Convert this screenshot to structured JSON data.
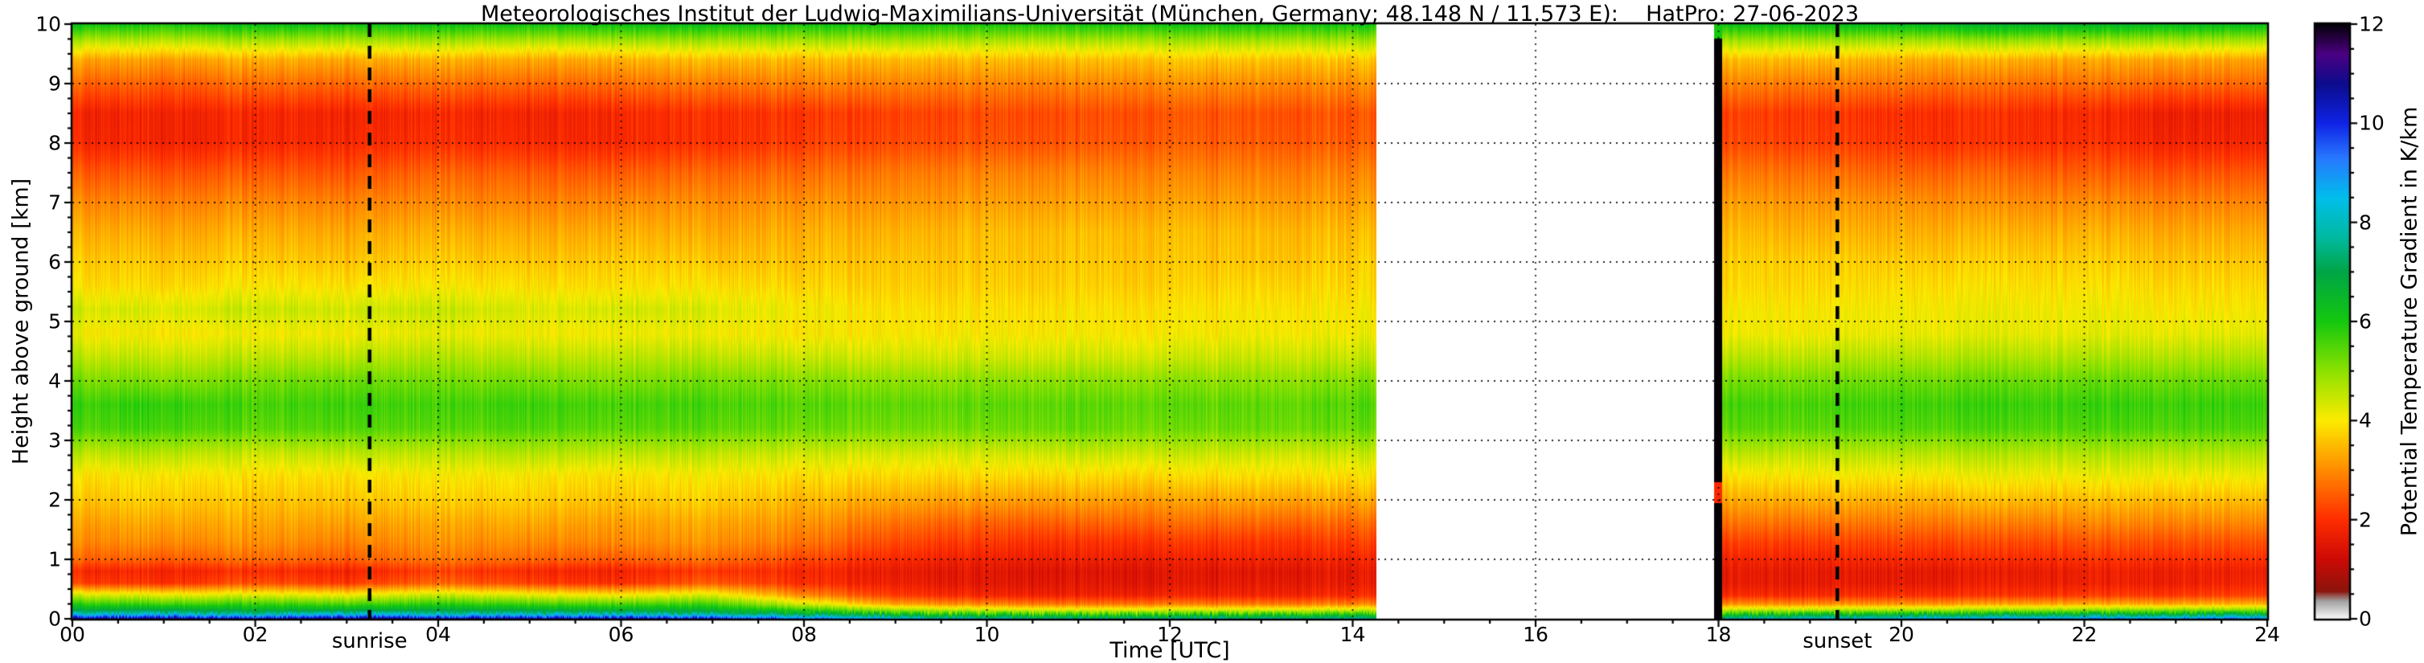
{
  "chart_data": {
    "type": "heatmap",
    "title": "Meteorologisches Institut der Ludwig-Maximilians-Universität (München, Germany; 48.148 N / 11.573 E):    HatPro: 27-06-2023",
    "xlabel": "Time [UTC]",
    "ylabel": "Height above ground [km]",
    "colorbar_label": "Potential Temperature Gradient in K/km",
    "x_range": [
      0,
      24
    ],
    "y_range": [
      0,
      10
    ],
    "value_range": [
      0,
      12
    ],
    "grid": "dotted",
    "annotations": {
      "sunrise_label": "sunrise",
      "sunset_label": "sunset"
    },
    "sunrise_time": 3.25,
    "sunset_time": 19.3,
    "gap": [
      14.26,
      17.95
    ],
    "black_stripe": [
      17.95,
      18.04
    ],
    "xticks": {
      "values": [
        0,
        2,
        4,
        6,
        8,
        10,
        12,
        14,
        16,
        18,
        20,
        22,
        24
      ],
      "labels": [
        "00",
        "02",
        "04",
        "06",
        "08",
        "10",
        "12",
        "14",
        "16",
        "18",
        "20",
        "22",
        "24"
      ]
    },
    "yticks": {
      "values": [
        0,
        1,
        2,
        3,
        4,
        5,
        6,
        7,
        8,
        9,
        10
      ],
      "labels": [
        "0",
        "1",
        "2",
        "3",
        "4",
        "5",
        "6",
        "7",
        "8",
        "9",
        "10"
      ]
    },
    "colorbar_ticks": {
      "values": [
        0,
        2,
        4,
        6,
        8,
        10,
        12
      ],
      "labels": [
        "0",
        "2",
        "4",
        "6",
        "8",
        "10",
        "12"
      ]
    },
    "colormap": [
      [
        0.0,
        "#f8f8f8"
      ],
      [
        0.35,
        "#a0a0a0"
      ],
      [
        0.55,
        "#8c140c"
      ],
      [
        1.2,
        "#cd0a05"
      ],
      [
        2.0,
        "#ff2d00"
      ],
      [
        3.0,
        "#ff8c00"
      ],
      [
        4.0,
        "#fceb00"
      ],
      [
        5.0,
        "#8ce100"
      ],
      [
        6.0,
        "#14c80f"
      ],
      [
        7.0,
        "#00a546"
      ],
      [
        7.7,
        "#00b9a0"
      ],
      [
        8.5,
        "#00beeb"
      ],
      [
        9.3,
        "#2878ff"
      ],
      [
        10.0,
        "#0f23e6"
      ],
      [
        10.8,
        "#0c0c8c"
      ],
      [
        11.4,
        "#4b0082"
      ],
      [
        12.0,
        "#050008"
      ]
    ],
    "heights": [
      0,
      0.08,
      0.15,
      0.25,
      0.4,
      0.6,
      0.8,
      1.0,
      1.3,
      1.6,
      2.0,
      2.4,
      2.8,
      3.2,
      3.6,
      4.0,
      4.4,
      4.8,
      5.2,
      5.6,
      6.0,
      6.5,
      7.0,
      7.5,
      8.0,
      8.5,
      9.0,
      9.4,
      9.7,
      10.0
    ],
    "columns": [
      {
        "t": 0,
        "values": [
          10.8,
          8.0,
          6.8,
          5.8,
          4.4,
          2.2,
          1.9,
          2.6,
          3.0,
          3.2,
          3.6,
          3.9,
          4.6,
          5.5,
          5.7,
          5.2,
          4.6,
          4.1,
          4.4,
          3.9,
          3.7,
          3.4,
          3.0,
          2.5,
          1.9,
          1.8,
          2.6,
          3.3,
          4.6,
          6.2
        ]
      },
      {
        "t": 1,
        "values": [
          11.0,
          8.2,
          6.9,
          5.6,
          4.2,
          2.0,
          1.8,
          2.5,
          3.0,
          3.3,
          3.7,
          4.0,
          4.7,
          5.6,
          5.8,
          5.1,
          4.5,
          4.0,
          4.3,
          3.8,
          3.6,
          3.3,
          2.9,
          2.4,
          1.8,
          1.8,
          2.5,
          3.2,
          4.5,
          6.0
        ]
      },
      {
        "t": 2,
        "values": [
          10.6,
          7.8,
          6.6,
          5.7,
          4.3,
          2.4,
          2.0,
          2.7,
          3.1,
          3.3,
          3.6,
          3.9,
          4.5,
          5.4,
          5.6,
          5.2,
          4.6,
          4.1,
          4.5,
          4.0,
          3.7,
          3.4,
          3.0,
          2.5,
          1.9,
          1.9,
          2.7,
          3.4,
          4.7,
          6.3
        ]
      },
      {
        "t": 3,
        "values": [
          10.9,
          8.1,
          6.7,
          5.5,
          4.1,
          2.1,
          1.8,
          2.5,
          2.9,
          3.2,
          3.6,
          3.9,
          4.6,
          5.5,
          5.7,
          5.3,
          4.6,
          4.1,
          4.4,
          3.9,
          3.6,
          3.3,
          2.9,
          2.4,
          1.9,
          1.8,
          2.6,
          3.3,
          4.6,
          6.1
        ]
      },
      {
        "t": 4,
        "values": [
          10.7,
          7.9,
          6.8,
          5.8,
          4.5,
          2.6,
          2.2,
          2.8,
          3.1,
          3.3,
          3.7,
          4.0,
          4.6,
          5.4,
          5.6,
          5.2,
          4.7,
          4.2,
          4.5,
          4.0,
          3.7,
          3.4,
          3.0,
          2.6,
          2.0,
          1.9,
          2.7,
          3.4,
          4.7,
          6.2
        ]
      },
      {
        "t": 5,
        "values": [
          10.8,
          8.0,
          6.7,
          5.6,
          4.2,
          2.2,
          1.9,
          2.6,
          3.0,
          3.3,
          3.7,
          4.0,
          4.7,
          5.5,
          5.7,
          5.2,
          4.6,
          4.1,
          4.3,
          3.9,
          3.6,
          3.3,
          2.9,
          2.5,
          1.9,
          1.8,
          2.6,
          3.3,
          4.6,
          6.1
        ]
      },
      {
        "t": 6,
        "values": [
          10.6,
          7.8,
          6.6,
          5.5,
          4.0,
          2.0,
          1.8,
          2.5,
          3.0,
          3.2,
          3.6,
          3.9,
          4.6,
          5.4,
          5.6,
          5.1,
          4.6,
          4.1,
          4.4,
          3.9,
          3.7,
          3.4,
          3.0,
          2.5,
          1.9,
          1.9,
          2.7,
          3.4,
          4.7,
          6.2
        ]
      },
      {
        "t": 7,
        "values": [
          10.4,
          7.6,
          6.5,
          5.6,
          4.3,
          2.5,
          2.1,
          2.7,
          3.1,
          3.3,
          3.7,
          4.0,
          4.6,
          5.4,
          5.6,
          5.2,
          4.6,
          4.1,
          4.3,
          3.9,
          3.6,
          3.3,
          3.0,
          2.6,
          2.0,
          2.0,
          2.8,
          3.5,
          4.7,
          6.2
        ]
      },
      {
        "t": 8,
        "values": [
          9.5,
          7.0,
          5.8,
          4.4,
          3.0,
          2.0,
          1.9,
          2.3,
          2.8,
          3.1,
          3.5,
          3.9,
          4.5,
          5.3,
          5.5,
          5.1,
          4.5,
          4.0,
          4.1,
          3.8,
          3.6,
          3.4,
          3.1,
          2.7,
          2.2,
          2.1,
          2.9,
          3.5,
          4.7,
          6.1
        ]
      },
      {
        "t": 9,
        "values": [
          8.5,
          6.2,
          4.8,
          3.2,
          2.1,
          1.7,
          1.6,
          1.9,
          2.3,
          2.7,
          3.3,
          3.8,
          4.4,
          5.2,
          5.4,
          5.0,
          4.4,
          4.0,
          3.9,
          3.7,
          3.6,
          3.4,
          3.1,
          2.8,
          2.3,
          2.2,
          2.9,
          3.5,
          4.7,
          6.1
        ]
      },
      {
        "t": 10,
        "values": [
          7.8,
          5.8,
          4.4,
          2.9,
          1.8,
          1.5,
          1.5,
          1.7,
          2.1,
          2.5,
          3.2,
          3.8,
          4.4,
          5.2,
          5.4,
          5.0,
          4.4,
          4.0,
          3.9,
          3.7,
          3.6,
          3.5,
          3.2,
          2.9,
          2.4,
          2.3,
          2.9,
          3.5,
          4.6,
          6.0
        ]
      },
      {
        "t": 11,
        "values": [
          7.5,
          5.6,
          4.2,
          2.7,
          1.7,
          1.5,
          1.4,
          1.7,
          2.0,
          2.5,
          3.2,
          3.8,
          4.5,
          5.3,
          5.4,
          5.0,
          4.4,
          4.0,
          3.9,
          3.7,
          3.6,
          3.5,
          3.2,
          2.9,
          2.4,
          2.3,
          2.9,
          3.5,
          4.6,
          6.0
        ]
      },
      {
        "t": 12,
        "values": [
          7.6,
          5.7,
          4.3,
          2.8,
          1.8,
          1.5,
          1.5,
          1.7,
          2.1,
          2.6,
          3.2,
          3.8,
          4.5,
          5.2,
          5.4,
          5.0,
          4.4,
          4.0,
          3.9,
          3.7,
          3.6,
          3.5,
          3.2,
          2.9,
          2.5,
          2.4,
          3.0,
          3.6,
          4.7,
          6.1
        ]
      },
      {
        "t": 13,
        "values": [
          7.7,
          5.8,
          4.3,
          2.8,
          1.8,
          1.6,
          1.5,
          1.8,
          2.1,
          2.6,
          3.3,
          3.9,
          4.5,
          5.3,
          5.4,
          5.0,
          4.5,
          4.1,
          4.0,
          3.8,
          3.6,
          3.5,
          3.2,
          2.9,
          2.5,
          2.4,
          3.0,
          3.6,
          4.7,
          6.1
        ]
      },
      {
        "t": 14.3,
        "values": [
          7.8,
          5.9,
          4.4,
          2.9,
          1.9,
          1.6,
          1.6,
          1.8,
          2.2,
          2.6,
          3.3,
          3.9,
          4.5,
          5.3,
          5.5,
          5.1,
          4.5,
          4.1,
          4.0,
          3.8,
          3.7,
          3.5,
          3.2,
          2.9,
          2.5,
          2.4,
          3.0,
          3.6,
          4.7,
          6.1
        ]
      },
      {
        "t": 18.04,
        "values": [
          8.0,
          6.0,
          4.5,
          3.0,
          1.9,
          1.6,
          1.6,
          1.8,
          2.2,
          2.7,
          3.3,
          3.9,
          4.6,
          5.4,
          5.6,
          5.2,
          4.6,
          4.1,
          4.0,
          3.8,
          3.7,
          3.5,
          3.2,
          2.8,
          2.3,
          2.2,
          2.9,
          3.5,
          4.7,
          6.2
        ]
      },
      {
        "t": 19,
        "values": [
          8.2,
          6.1,
          4.6,
          3.0,
          1.9,
          1.6,
          1.6,
          1.8,
          2.2,
          2.7,
          3.4,
          4.0,
          4.6,
          5.4,
          5.6,
          5.2,
          4.6,
          4.1,
          4.0,
          3.8,
          3.7,
          3.4,
          3.1,
          2.7,
          2.2,
          2.1,
          2.8,
          3.5,
          4.7,
          6.3
        ]
      },
      {
        "t": 20,
        "values": [
          8.5,
          6.3,
          4.7,
          3.1,
          2.0,
          1.6,
          1.6,
          1.9,
          2.3,
          2.8,
          3.4,
          4.0,
          4.7,
          5.5,
          5.7,
          5.3,
          4.7,
          4.2,
          4.1,
          3.9,
          3.7,
          3.4,
          3.1,
          2.6,
          2.1,
          2.0,
          2.8,
          3.4,
          4.7,
          6.4
        ]
      },
      {
        "t": 21,
        "values": [
          8.8,
          6.5,
          4.8,
          3.2,
          2.0,
          1.7,
          1.6,
          1.9,
          2.3,
          2.8,
          3.5,
          4.1,
          4.7,
          5.5,
          5.7,
          5.3,
          4.7,
          4.2,
          4.1,
          3.9,
          3.7,
          3.4,
          3.0,
          2.6,
          2.0,
          2.0,
          2.7,
          3.4,
          4.8,
          6.6
        ]
      },
      {
        "t": 22,
        "values": [
          9.0,
          6.6,
          4.9,
          3.3,
          2.1,
          1.7,
          1.7,
          2.0,
          2.4,
          2.9,
          3.5,
          4.1,
          4.7,
          5.5,
          5.7,
          5.3,
          4.7,
          4.2,
          4.1,
          3.9,
          3.7,
          3.4,
          3.0,
          2.5,
          2.0,
          1.9,
          2.7,
          3.3,
          4.7,
          6.5
        ]
      },
      {
        "t": 23,
        "values": [
          9.2,
          6.7,
          5.0,
          3.3,
          2.1,
          1.7,
          1.7,
          2.0,
          2.4,
          2.9,
          3.5,
          4.1,
          4.7,
          5.5,
          5.7,
          5.3,
          4.7,
          4.2,
          4.0,
          3.8,
          3.6,
          3.3,
          2.9,
          2.4,
          1.8,
          1.7,
          2.6,
          3.3,
          4.7,
          6.4
        ]
      },
      {
        "t": 24,
        "values": [
          9.3,
          6.8,
          5.0,
          3.4,
          2.2,
          1.8,
          1.7,
          2.0,
          2.4,
          2.9,
          3.5,
          4.1,
          4.7,
          5.5,
          5.7,
          5.3,
          4.7,
          4.2,
          4.0,
          3.8,
          3.6,
          3.3,
          2.9,
          2.4,
          1.8,
          1.7,
          2.6,
          3.2,
          4.6,
          6.3
        ]
      }
    ]
  }
}
